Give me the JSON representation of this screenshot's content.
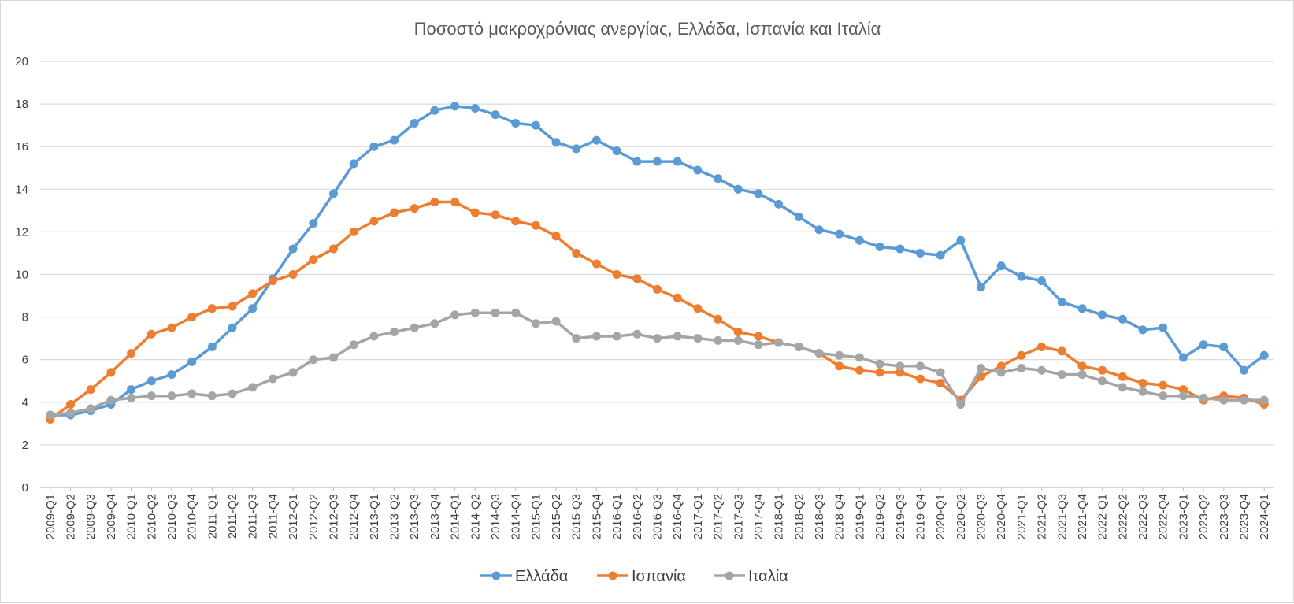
{
  "chart_data": {
    "type": "line",
    "title": "Ποσοστό μακροχρόνιας ανεργίας, Ελλάδα, Ισπανία και Ιταλία",
    "xlabel": "",
    "ylabel": "",
    "ylim": [
      0,
      20
    ],
    "yticks": [
      "0",
      "2",
      "4",
      "6",
      "8",
      "10",
      "12",
      "14",
      "16",
      "18",
      "20"
    ],
    "grid": true,
    "legend_position": "bottom",
    "categories": [
      "2009-Q1",
      "2009-Q2",
      "2009-Q3",
      "2009-Q4",
      "2010-Q1",
      "2010-Q2",
      "2010-Q3",
      "2010-Q4",
      "2011-Q1",
      "2011-Q2",
      "2011-Q3",
      "2011-Q4",
      "2012-Q1",
      "2012-Q2",
      "2012-Q3",
      "2012-Q4",
      "2013-Q1",
      "2013-Q2",
      "2013-Q3",
      "2013-Q4",
      "2014-Q1",
      "2014-Q2",
      "2014-Q3",
      "2014-Q4",
      "2015-Q1",
      "2015-Q2",
      "2015-Q3",
      "2015-Q4",
      "2016-Q1",
      "2016-Q2",
      "2016-Q3",
      "2016-Q4",
      "2017-Q1",
      "2017-Q2",
      "2017-Q3",
      "2017-Q4",
      "2018-Q1",
      "2018-Q2",
      "2018-Q3",
      "2018-Q4",
      "2019-Q1",
      "2019-Q2",
      "2019-Q3",
      "2019-Q4",
      "2020-Q1",
      "2020-Q2",
      "2020-Q3",
      "2020-Q4",
      "2021-Q1",
      "2021-Q2",
      "2021-Q3",
      "2021-Q4",
      "2022-Q1",
      "2022-Q2",
      "2022-Q3",
      "2022-Q4",
      "2023-Q1",
      "2023-Q2",
      "2023-Q3",
      "2023-Q4",
      "2024-Q1"
    ],
    "series": [
      {
        "name": "Ελλάδα",
        "color": "#5b9bd5",
        "values": [
          3.4,
          3.4,
          3.6,
          3.9,
          4.6,
          5.0,
          5.3,
          5.9,
          6.6,
          7.5,
          8.4,
          9.8,
          11.2,
          12.4,
          13.8,
          15.2,
          16.0,
          16.3,
          17.1,
          17.7,
          17.9,
          17.8,
          17.5,
          17.1,
          17.0,
          16.2,
          15.9,
          16.3,
          15.8,
          15.3,
          15.3,
          15.3,
          14.9,
          14.5,
          14.0,
          13.8,
          13.3,
          12.7,
          12.1,
          11.9,
          11.6,
          11.3,
          11.2,
          11.0,
          10.9,
          11.6,
          9.4,
          10.4,
          9.9,
          9.7,
          8.7,
          8.4,
          8.1,
          7.9,
          7.4,
          7.5,
          6.1,
          6.7,
          6.6,
          5.5,
          6.2
        ]
      },
      {
        "name": "Ισπανία",
        "color": "#ed7d31",
        "values": [
          3.2,
          3.9,
          4.6,
          5.4,
          6.3,
          7.2,
          7.5,
          8.0,
          8.4,
          8.5,
          9.1,
          9.7,
          10.0,
          10.7,
          11.2,
          12.0,
          12.5,
          12.9,
          13.1,
          13.4,
          13.4,
          12.9,
          12.8,
          12.5,
          12.3,
          11.8,
          11.0,
          10.5,
          10.0,
          9.8,
          9.3,
          8.9,
          8.4,
          7.9,
          7.3,
          7.1,
          6.8,
          6.6,
          6.3,
          5.7,
          5.5,
          5.4,
          5.4,
          5.1,
          4.9,
          4.1,
          5.2,
          5.7,
          6.2,
          6.6,
          6.4,
          5.7,
          5.5,
          5.2,
          4.9,
          4.8,
          4.6,
          4.1,
          4.3,
          4.2,
          3.9
        ]
      },
      {
        "name": "Ιταλία",
        "color": "#a5a5a5",
        "values": [
          3.4,
          3.5,
          3.7,
          4.1,
          4.2,
          4.3,
          4.3,
          4.4,
          4.3,
          4.4,
          4.7,
          5.1,
          5.4,
          6.0,
          6.1,
          6.7,
          7.1,
          7.3,
          7.5,
          7.7,
          8.1,
          8.2,
          8.2,
          8.2,
          7.7,
          7.8,
          7.0,
          7.1,
          7.1,
          7.2,
          7.0,
          7.1,
          7.0,
          6.9,
          6.9,
          6.7,
          6.8,
          6.6,
          6.3,
          6.2,
          6.1,
          5.8,
          5.7,
          5.7,
          5.4,
          3.9,
          5.6,
          5.4,
          5.6,
          5.5,
          5.3,
          5.3,
          5.0,
          4.7,
          4.5,
          4.3,
          4.3,
          4.2,
          4.1,
          4.1,
          4.1
        ]
      }
    ]
  }
}
